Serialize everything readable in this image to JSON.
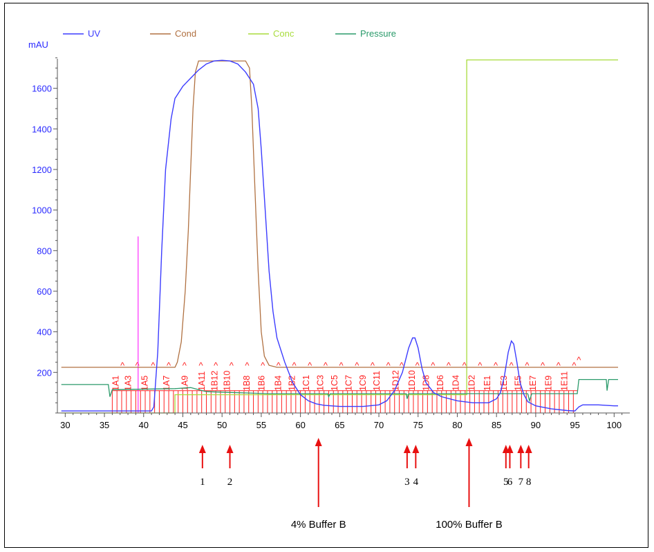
{
  "chart_data": {
    "type": "line",
    "ylabel": "mAU",
    "xlim": [
      29,
      102
    ],
    "ylim": [
      0,
      1800
    ],
    "x_ticks": [
      30,
      35,
      40,
      45,
      50,
      55,
      60,
      65,
      70,
      75,
      80,
      85,
      90,
      95,
      100
    ],
    "y_ticks": [
      200,
      400,
      600,
      800,
      1000,
      1200,
      1400,
      1600
    ],
    "legend": {
      "placement": "top",
      "entries": [
        {
          "name": "UV",
          "color": "#3b3bff"
        },
        {
          "name": "Cond",
          "color": "#b07040"
        },
        {
          "name": "Conc",
          "color": "#a8dc3c"
        },
        {
          "name": "Pressure",
          "color": "#2a9a6a"
        }
      ]
    },
    "series": [
      {
        "name": "UV",
        "color": "#3b3bff",
        "points": [
          [
            29.5,
            10
          ],
          [
            41,
            10
          ],
          [
            41.3,
            30
          ],
          [
            41.8,
            300
          ],
          [
            42.3,
            800
          ],
          [
            42.8,
            1200
          ],
          [
            43.5,
            1450
          ],
          [
            44,
            1550
          ],
          [
            45,
            1610
          ],
          [
            46,
            1650
          ],
          [
            47,
            1690
          ],
          [
            48,
            1720
          ],
          [
            49,
            1735
          ],
          [
            50,
            1738
          ],
          [
            51,
            1735
          ],
          [
            52,
            1720
          ],
          [
            53,
            1680
          ],
          [
            54,
            1620
          ],
          [
            54.6,
            1500
          ],
          [
            55,
            1300
          ],
          [
            55.5,
            1000
          ],
          [
            56,
            700
          ],
          [
            56.5,
            500
          ],
          [
            57,
            370
          ],
          [
            58,
            250
          ],
          [
            59,
            150
          ],
          [
            60,
            90
          ],
          [
            61,
            60
          ],
          [
            62,
            45
          ],
          [
            63,
            38
          ],
          [
            65,
            32
          ],
          [
            68,
            32
          ],
          [
            70,
            40
          ],
          [
            71,
            60
          ],
          [
            72,
            110
          ],
          [
            73,
            200
          ],
          [
            73.8,
            320
          ],
          [
            74.3,
            370
          ],
          [
            74.6,
            370
          ],
          [
            75,
            320
          ],
          [
            75.5,
            220
          ],
          [
            76,
            150
          ],
          [
            77,
            100
          ],
          [
            78,
            80
          ],
          [
            80,
            60
          ],
          [
            82,
            50
          ],
          [
            84,
            50
          ],
          [
            85,
            70
          ],
          [
            85.5,
            100
          ],
          [
            86,
            180
          ],
          [
            86.5,
            300
          ],
          [
            86.9,
            355
          ],
          [
            87.2,
            340
          ],
          [
            87.6,
            250
          ],
          [
            88,
            150
          ],
          [
            88.5,
            90
          ],
          [
            89,
            55
          ],
          [
            90,
            35
          ],
          [
            92,
            20
          ],
          [
            94,
            12
          ],
          [
            95,
            10
          ],
          [
            95.5,
            30
          ],
          [
            96,
            40
          ],
          [
            98,
            40
          ],
          [
            100,
            35
          ],
          [
            100.5,
            35
          ]
        ]
      },
      {
        "name": "Cond",
        "color": "#b07040",
        "points": [
          [
            29.5,
            225
          ],
          [
            44,
            225
          ],
          [
            44.3,
            250
          ],
          [
            44.8,
            350
          ],
          [
            45.3,
            600
          ],
          [
            45.7,
            900
          ],
          [
            46,
            1200
          ],
          [
            46.3,
            1500
          ],
          [
            46.6,
            1680
          ],
          [
            47,
            1735
          ],
          [
            53,
            1735
          ],
          [
            53.5,
            1700
          ],
          [
            53.8,
            1500
          ],
          [
            54.2,
            1100
          ],
          [
            54.6,
            700
          ],
          [
            55,
            400
          ],
          [
            55.4,
            280
          ],
          [
            56,
            235
          ],
          [
            57,
            225
          ],
          [
            95.3,
            225
          ],
          [
            95.5,
            225
          ],
          [
            100.5,
            225
          ]
        ]
      },
      {
        "name": "Conc",
        "color": "#a8dc3c",
        "points": [
          [
            29.5,
            0
          ],
          [
            44,
            0
          ],
          [
            44,
            90
          ],
          [
            81.2,
            90
          ],
          [
            81.2,
            1740
          ],
          [
            100.5,
            1740
          ]
        ]
      },
      {
        "name": "Pressure",
        "color": "#2a9a6a",
        "points": [
          [
            29.5,
            140
          ],
          [
            35.5,
            140
          ],
          [
            35.7,
            80
          ],
          [
            36,
            115
          ],
          [
            44,
            120
          ],
          [
            46,
            125
          ],
          [
            48,
            105
          ],
          [
            52,
            100
          ],
          [
            56,
            95
          ],
          [
            63.5,
            95
          ],
          [
            63.6,
            80
          ],
          [
            63.8,
            95
          ],
          [
            73.5,
            95
          ],
          [
            73.6,
            70
          ],
          [
            73.8,
            95
          ],
          [
            89,
            95
          ],
          [
            89.2,
            60
          ],
          [
            89.5,
            95
          ],
          [
            95.3,
            95
          ],
          [
            95.5,
            165
          ],
          [
            99,
            165
          ],
          [
            99.1,
            110
          ],
          [
            99.3,
            165
          ],
          [
            100.5,
            165
          ]
        ]
      }
    ],
    "injection_marker": {
      "x": 39.3,
      "top": 870,
      "color": "#ff00ff"
    },
    "fractions": {
      "start": 36,
      "end": 95.3,
      "bar_top": 110,
      "color": "#ff2020",
      "labels": [
        {
          "x": 36.8,
          "text": "1A1"
        },
        {
          "x": 38.4,
          "text": "1A3"
        },
        {
          "x": 40.5,
          "text": "1A5"
        },
        {
          "x": 43.3,
          "text": "1A7"
        },
        {
          "x": 45.6,
          "text": "1A9"
        },
        {
          "x": 47.8,
          "text": "1A11"
        },
        {
          "x": 49.4,
          "text": "1B12"
        },
        {
          "x": 51,
          "text": "1B10"
        },
        {
          "x": 53.5,
          "text": "1B8"
        },
        {
          "x": 55.4,
          "text": "1B6"
        },
        {
          "x": 57.5,
          "text": "1B4"
        },
        {
          "x": 59.3,
          "text": "1B2"
        },
        {
          "x": 61.1,
          "text": "1C1"
        },
        {
          "x": 62.9,
          "text": "1C3"
        },
        {
          "x": 64.7,
          "text": "1C5"
        },
        {
          "x": 66.5,
          "text": "1C7"
        },
        {
          "x": 68.3,
          "text": "1C9"
        },
        {
          "x": 70.1,
          "text": "1C11"
        },
        {
          "x": 72.5,
          "text": "1D12"
        },
        {
          "x": 74.6,
          "text": "1D10"
        },
        {
          "x": 76.4,
          "text": "1D8"
        },
        {
          "x": 78.2,
          "text": "1D6"
        },
        {
          "x": 80.2,
          "text": "1D4"
        },
        {
          "x": 82.2,
          "text": "1D2"
        },
        {
          "x": 84.2,
          "text": "1E1"
        },
        {
          "x": 86.3,
          "text": "1E3"
        },
        {
          "x": 88.1,
          "text": "1E5"
        },
        {
          "x": 90,
          "text": "1E7"
        },
        {
          "x": 92,
          "text": "1E9"
        },
        {
          "x": 94,
          "text": "1E11"
        }
      ],
      "carets": [
        37.3,
        39.2,
        41.2,
        43.2,
        45.2,
        47.3,
        49.2,
        51.2,
        53.2,
        55.2,
        57.2,
        59.2,
        61.2,
        63.2,
        65.2,
        67.2,
        69.2,
        71.2,
        72.9,
        74.9,
        76.9,
        78.9,
        80.9,
        82.9,
        84.9,
        86.9,
        88.9,
        90.9,
        92.9,
        94.9
      ],
      "caret_glyph": "^",
      "end_caret_x": 95.5
    },
    "annotations": {
      "arrow_color": "#e81010",
      "numbered": [
        {
          "x": 47.5,
          "label": "1"
        },
        {
          "x": 51,
          "label": "2"
        },
        {
          "x": 73.6,
          "label": "3"
        },
        {
          "x": 74.7,
          "label": "4"
        },
        {
          "x": 86.2,
          "label": "5"
        },
        {
          "x": 86.7,
          "label": "6"
        },
        {
          "x": 88.1,
          "label": "7"
        },
        {
          "x": 89.1,
          "label": "8"
        }
      ],
      "buffer": [
        {
          "x": 62.3,
          "label": "4% Buffer B"
        },
        {
          "x": 81.5,
          "label": "100% Buffer B"
        }
      ]
    }
  }
}
